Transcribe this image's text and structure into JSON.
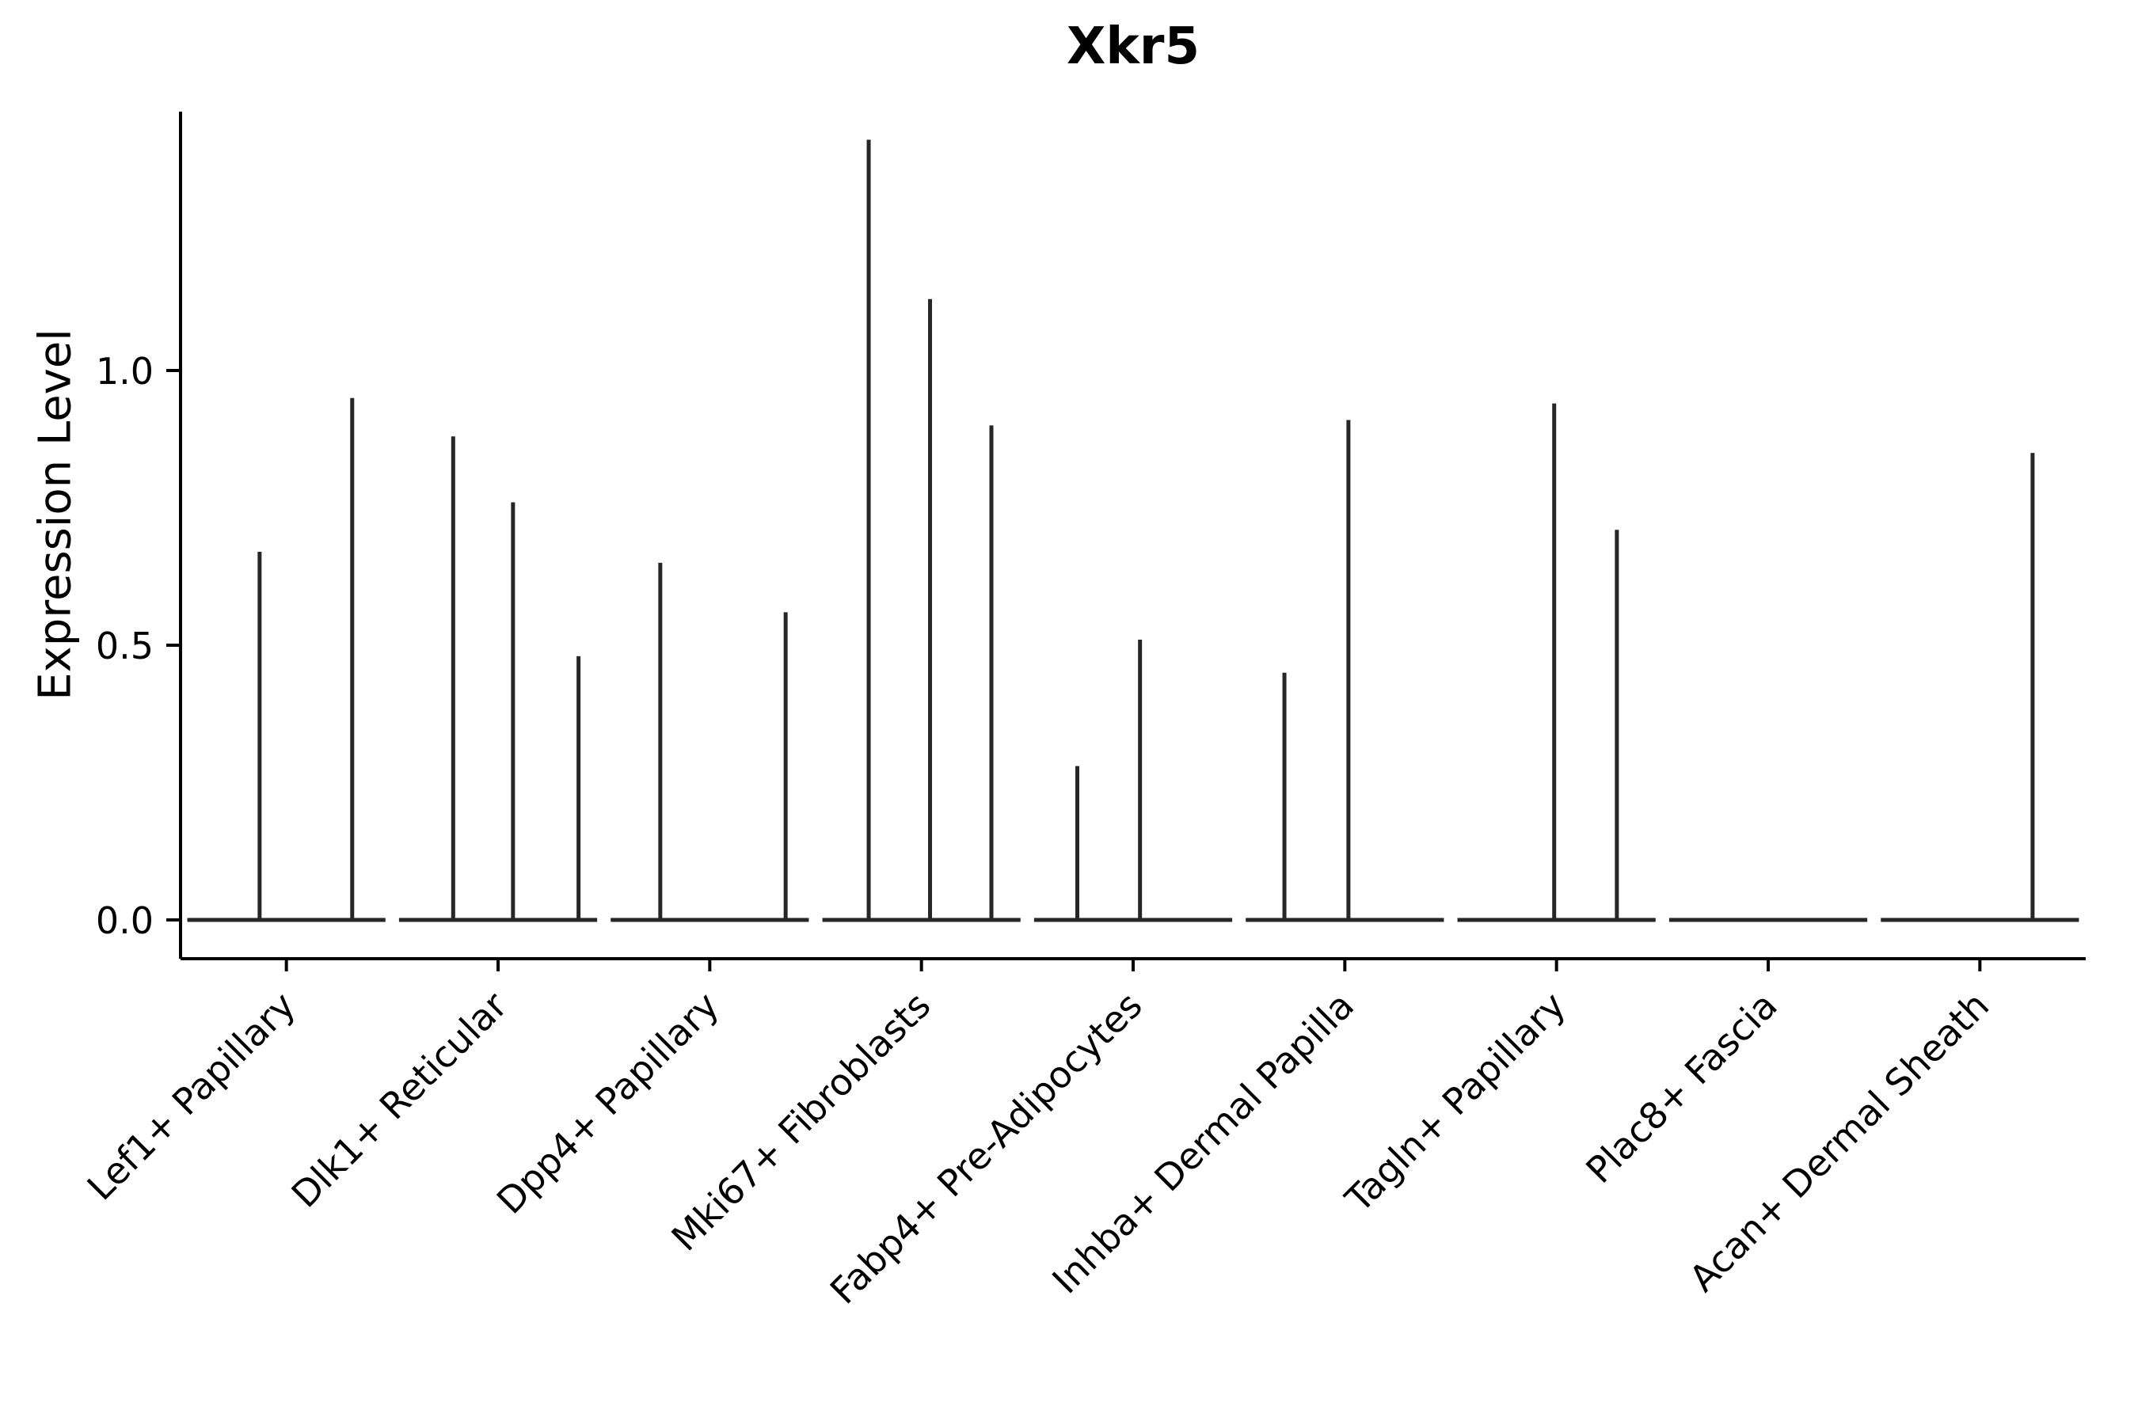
{
  "chart_data": {
    "type": "violin",
    "title": "Xkr5",
    "ylabel": "Expression Level",
    "xlabel": "",
    "legend": "none",
    "grid": false,
    "ytick_labels": [
      "0.0",
      "0.5",
      "1.0"
    ],
    "ytick_values": [
      0.0,
      0.5,
      1.0
    ],
    "ylim": [
      -0.07,
      1.47
    ],
    "categories": [
      "Lef1+ Papillary",
      "Dlk1+ Reticular",
      "Dpp4+ Papillary",
      "Mki67+ Fibroblasts",
      "Fabp4+ Pre-Adipocytes",
      "Inhba+ Dermal Papilla",
      "Tagln+ Papillary",
      "Plac8+ Fascia",
      "Acan+ Dermal Sheath"
    ],
    "violins": [
      {
        "category": "Lef1+ Papillary",
        "spikes": [
          {
            "x": 0.0415,
            "value": 0.67
          },
          {
            "x": 0.0901,
            "value": 0.95
          }
        ]
      },
      {
        "category": "Dlk1+ Reticular",
        "spikes": [
          {
            "x": 0.1431,
            "value": 0.88
          },
          {
            "x": 0.1745,
            "value": 0.76
          },
          {
            "x": 0.2089,
            "value": 0.48
          }
        ]
      },
      {
        "category": "Dpp4+ Papillary",
        "spikes": [
          {
            "x": 0.2518,
            "value": 0.65
          },
          {
            "x": 0.3176,
            "value": 0.56
          }
        ]
      },
      {
        "category": "Mki67+ Fibroblasts",
        "spikes": [
          {
            "x": 0.3612,
            "value": 1.42
          },
          {
            "x": 0.3934,
            "value": 1.13
          },
          {
            "x": 0.4256,
            "value": 0.9
          }
        ]
      },
      {
        "category": "Fabp4+ Pre-Adipocytes",
        "spikes": [
          {
            "x": 0.4707,
            "value": 0.28
          },
          {
            "x": 0.5036,
            "value": 0.51
          }
        ]
      },
      {
        "category": "Inhba+ Dermal Papilla",
        "spikes": [
          {
            "x": 0.5794,
            "value": 0.45
          },
          {
            "x": 0.613,
            "value": 0.91
          }
        ]
      },
      {
        "category": "Tagln+ Papillary",
        "spikes": [
          {
            "x": 0.721,
            "value": 0.94
          },
          {
            "x": 0.7539,
            "value": 0.71
          }
        ]
      },
      {
        "category": "Plac8+ Fascia",
        "spikes": []
      },
      {
        "category": "Acan+ Dermal Sheath",
        "spikes": [
          {
            "x": 0.9721,
            "value": 0.85
          }
        ]
      }
    ],
    "colors": {
      "violin_line": "#262626",
      "axis": "#000000",
      "text": "#000000",
      "background": "#ffffff"
    }
  }
}
